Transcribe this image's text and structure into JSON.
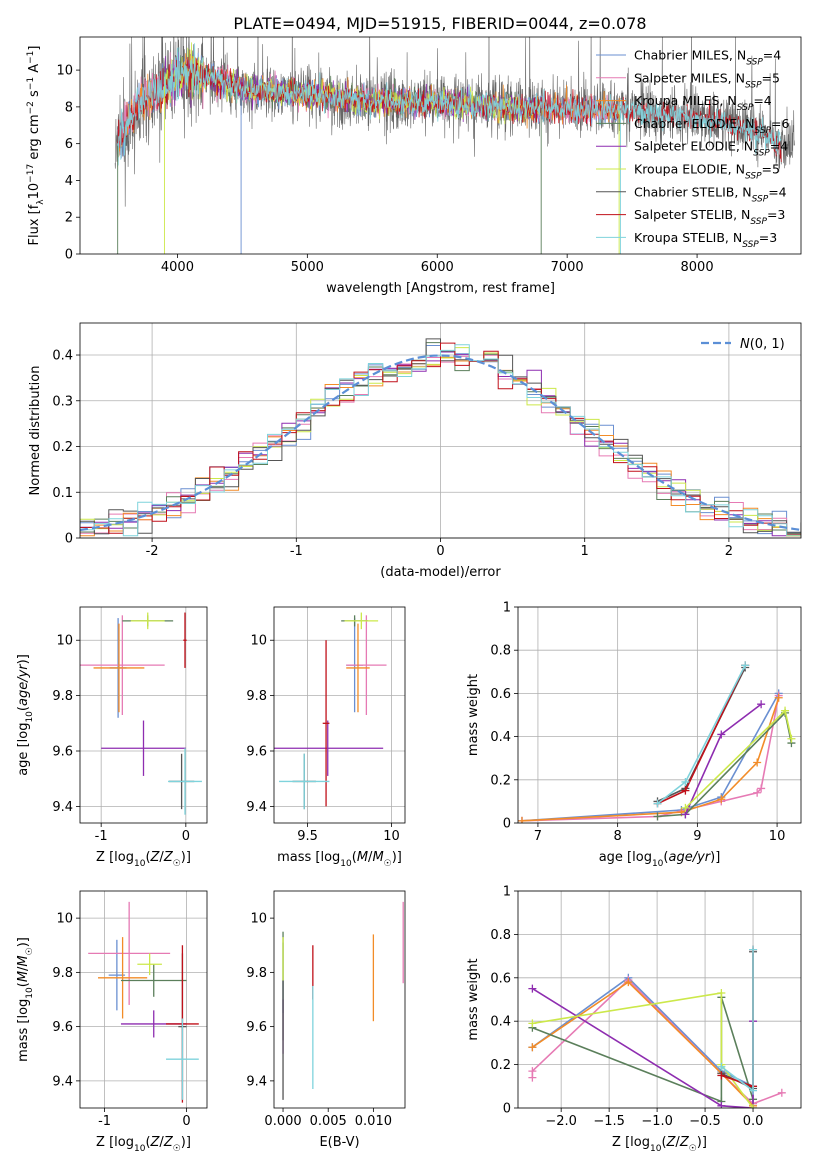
{
  "figure_title": "PLATE=0494, MJD=51915, FIBERID=0044, z=0.078",
  "colors": {
    "Chabrier MILES": "#6a8fd1",
    "Salpeter MILES": "#e67ab4",
    "Kroupa MILES": "#f28c28",
    "Chabrier ELODIE": "#5b7f5b",
    "Salpeter ELODIE": "#8e2db0",
    "Kroupa ELODIE": "#cce84a",
    "Chabrier STELIB": "#555555",
    "Salpeter STELIB": "#c0111a",
    "Kroupa STELIB": "#7fd3dc",
    "gaussian": "#5b8fd6",
    "grid": "#b0b0b0"
  },
  "chart_data": [
    {
      "id": "spectrum",
      "type": "line",
      "xlabel": "wavelength [Angstrom, rest frame]",
      "ylabel": "Flux [fλ10⁻¹⁷ erg cm⁻² s⁻¹ A⁻¹]",
      "xlim": [
        3250,
        8800
      ],
      "ylim": [
        0,
        11.8
      ],
      "xticks": [
        4000,
        5000,
        6000,
        7000,
        8000
      ],
      "yticks": [
        0,
        2,
        4,
        6,
        8,
        10
      ],
      "grid": false,
      "legend_position": "top-right",
      "data_range": [
        3520,
        7430
      ],
      "continuum": [
        [
          3520,
          5.6
        ],
        [
          3700,
          8.2
        ],
        [
          4000,
          9.6
        ],
        [
          4100,
          9.9
        ],
        [
          4500,
          9.0
        ],
        [
          5000,
          8.7
        ],
        [
          5500,
          8.3
        ],
        [
          6000,
          8.2
        ],
        [
          6500,
          8.0
        ],
        [
          7000,
          7.9
        ],
        [
          7400,
          7.8
        ],
        [
          7600,
          7.7
        ],
        [
          7900,
          7.5
        ],
        [
          8200,
          7.2
        ],
        [
          8500,
          6.6
        ],
        [
          8600,
          6.0
        ]
      ],
      "series": [
        {
          "name": "Chabrier MILES, N_SSP=4",
          "label_main": "Chabrier MILES, N",
          "label_sub": "SSP",
          "label_end": "=4",
          "range": [
            3540,
            7410
          ]
        },
        {
          "name": "Salpeter MILES, N_SSP=5",
          "label_main": "Salpeter MILES, N",
          "label_sub": "SSP",
          "label_end": "=5",
          "range": [
            3540,
            7410
          ]
        },
        {
          "name": "Kroupa MILES, N_SSP=4",
          "label_main": "Kroupa MILES, N",
          "label_sub": "SSP",
          "label_end": "=4",
          "range": [
            3540,
            7410
          ]
        },
        {
          "name": "Chabrier ELODIE, N_SSP=6",
          "label_main": "Chabrier ELODIE, N",
          "label_sub": "SSP",
          "label_end": "=6",
          "range": [
            3900,
            6800
          ]
        },
        {
          "name": "Salpeter ELODIE, N_SSP=4",
          "label_main": "Salpeter ELODIE, N",
          "label_sub": "SSP",
          "label_end": "=4",
          "range": [
            3900,
            6800
          ]
        },
        {
          "name": "Kroupa ELODIE, N_SSP=5",
          "label_main": "Kroupa ELODIE, N",
          "label_sub": "SSP",
          "label_end": "=5",
          "range": [
            3900,
            6800
          ]
        },
        {
          "name": "Chabrier STELIB, N_SSP=4",
          "label_main": "Chabrier STELIB, N",
          "label_sub": "SSP",
          "label_end": "=4",
          "range": [
            3520,
            8750
          ]
        },
        {
          "name": "Salpeter STELIB, N_SSP=3",
          "label_main": "Salpeter STELIB, N",
          "label_sub": "SSP",
          "label_end": "=3",
          "range": [
            3540,
            8650
          ]
        },
        {
          "name": "Kroupa STELIB, N_SSP=3",
          "label_main": "Kroupa STELIB, N",
          "label_sub": "SSP",
          "label_end": "=3",
          "range": [
            3540,
            8650
          ]
        }
      ]
    },
    {
      "id": "residuals",
      "type": "histogram",
      "xlabel": "(data-model)/error",
      "ylabel": "Normed distribution",
      "xlim": [
        -2.5,
        2.5
      ],
      "ylim": [
        0,
        0.47
      ],
      "xticks": [
        -2,
        -1,
        0,
        1,
        2
      ],
      "yticks": [
        0.0,
        0.1,
        0.2,
        0.3,
        0.4
      ],
      "grid": true,
      "legend_position": "top-right",
      "legend_label": "N(0,1)",
      "bin_width": 0.1,
      "note": "Nine step histograms, one per model, each approximately standard normal"
    },
    {
      "id": "age_vs_Z",
      "type": "errorbar",
      "xlabel": "Z [log10(Z/Z☉)]",
      "ylabel": "age [log10(age/yr)]",
      "xlim": [
        -1.25,
        0.25
      ],
      "ylim": [
        9.34,
        10.12
      ],
      "xticks": [
        -1,
        0
      ],
      "yticks": [
        9.4,
        9.6,
        9.8,
        10.0
      ],
      "grid": true,
      "points": [
        {
          "model": "Chabrier MILES",
          "x": -0.8,
          "xerr": 0.1,
          "y": 9.9,
          "yerr": 0.18
        },
        {
          "model": "Salpeter MILES",
          "x": -0.75,
          "xerr": 0.5,
          "y": 9.91,
          "yerr": 0.18
        },
        {
          "model": "Kroupa MILES",
          "x": -0.79,
          "xerr": 0.3,
          "y": 9.9,
          "yerr": 0.16
        },
        {
          "model": "Chabrier ELODIE",
          "x": -0.45,
          "xerr": 0.3,
          "y": 10.07,
          "yerr": 0.02
        },
        {
          "model": "Salpeter ELODIE",
          "x": -0.5,
          "xerr": 0.5,
          "y": 9.61,
          "yerr": 0.1
        },
        {
          "model": "Kroupa ELODIE",
          "x": -0.45,
          "xerr": 0.2,
          "y": 10.07,
          "yerr": 0.03
        },
        {
          "model": "Chabrier STELIB",
          "x": -0.05,
          "xerr": 0.15,
          "y": 9.49,
          "yerr": 0.1
        },
        {
          "model": "Salpeter STELIB",
          "x": -0.01,
          "xerr": 0.02,
          "y": 10.0,
          "yerr": 0.1
        },
        {
          "model": "Kroupa STELIB",
          "x": -0.01,
          "xerr": 0.2,
          "y": 9.49,
          "yerr": 0.12
        }
      ]
    },
    {
      "id": "age_vs_mass",
      "type": "errorbar",
      "xlabel": "mass [log10(M/M☉)]",
      "ylabel": "",
      "xlim": [
        9.3,
        10.08
      ],
      "ylim": [
        9.34,
        10.12
      ],
      "xticks": [
        9.5,
        10.0
      ],
      "yticks": [
        9.4,
        9.6,
        9.8,
        10.0
      ],
      "grid": true,
      "points": [
        {
          "model": "Chabrier MILES",
          "x": 9.78,
          "xerr": 0.05,
          "y": 9.91,
          "yerr": 0.17
        },
        {
          "model": "Salpeter MILES",
          "x": 9.85,
          "xerr": 0.12,
          "y": 9.91,
          "yerr": 0.18
        },
        {
          "model": "Kroupa MILES",
          "x": 9.8,
          "xerr": 0.07,
          "y": 9.9,
          "yerr": 0.16
        },
        {
          "model": "Chabrier ELODIE",
          "x": 9.78,
          "xerr": 0.08,
          "y": 10.07,
          "yerr": 0.02
        },
        {
          "model": "Salpeter ELODIE",
          "x": 9.62,
          "xerr": 0.33,
          "y": 9.61,
          "yerr": 0.1
        },
        {
          "model": "Kroupa ELODIE",
          "x": 9.82,
          "xerr": 0.1,
          "y": 10.07,
          "yerr": 0.03
        },
        {
          "model": "Chabrier STELIB",
          "x": 9.48,
          "xerr": 0.07,
          "y": 9.49,
          "yerr": 0.1
        },
        {
          "model": "Salpeter STELIB",
          "x": 9.61,
          "xerr": 0.02,
          "y": 9.7,
          "yerr": 0.3
        },
        {
          "model": "Kroupa STELIB",
          "x": 9.48,
          "xerr": 0.15,
          "y": 9.49,
          "yerr": 0.1
        }
      ]
    },
    {
      "id": "mass_weight_vs_age",
      "type": "line",
      "xlabel": "age [log10(age/yr)]",
      "ylabel": "mass weight",
      "xlim": [
        6.75,
        10.3
      ],
      "ylim": [
        0,
        1.0
      ],
      "xticks": [
        7,
        8,
        9,
        10
      ],
      "yticks": [
        0.0,
        0.2,
        0.4,
        0.6,
        0.8,
        1.0
      ],
      "grid": true,
      "series": [
        {
          "model": "Chabrier MILES",
          "x": [
            6.8,
            8.8,
            9.3,
            10.02
          ],
          "y": [
            0.01,
            0.06,
            0.12,
            0.6
          ]
        },
        {
          "model": "Salpeter MILES",
          "x": [
            6.8,
            8.5,
            9.3,
            9.75,
            9.8,
            10.02
          ],
          "y": [
            0.01,
            0.03,
            0.1,
            0.14,
            0.16,
            0.59
          ]
        },
        {
          "model": "Kroupa MILES",
          "x": [
            6.8,
            8.8,
            9.3,
            9.75,
            10.02
          ],
          "y": [
            0.01,
            0.05,
            0.11,
            0.28,
            0.58
          ]
        },
        {
          "model": "Chabrier ELODIE",
          "x": [
            8.5,
            8.85,
            10.1,
            10.18
          ],
          "y": [
            0.03,
            0.04,
            0.51,
            0.37
          ]
        },
        {
          "model": "Salpeter ELODIE",
          "x": [
            8.85,
            9.3,
            9.8
          ],
          "y": [
            0.04,
            0.41,
            0.55
          ]
        },
        {
          "model": "Kroupa ELODIE",
          "x": [
            8.85,
            10.1,
            10.18
          ],
          "y": [
            0.07,
            0.52,
            0.39
          ]
        },
        {
          "model": "Chabrier STELIB",
          "x": [
            8.5,
            8.85,
            9.6
          ],
          "y": [
            0.1,
            0.16,
            0.72
          ]
        },
        {
          "model": "Salpeter STELIB",
          "x": [
            8.5,
            8.85,
            9.6
          ],
          "y": [
            0.09,
            0.15,
            0.73
          ]
        },
        {
          "model": "Kroupa STELIB",
          "x": [
            8.5,
            8.85,
            9.6
          ],
          "y": [
            0.09,
            0.19,
            0.73
          ]
        }
      ]
    },
    {
      "id": "mass_vs_Z",
      "type": "errorbar",
      "xlabel": "Z [log10(Z/Z☉)]",
      "ylabel": "mass [log10(M/M☉)]",
      "xlim": [
        -1.3,
        0.25
      ],
      "ylim": [
        9.3,
        10.1
      ],
      "xticks": [
        -1,
        0
      ],
      "yticks": [
        9.4,
        9.6,
        9.8,
        10.0
      ],
      "grid": true,
      "points": [
        {
          "model": "Chabrier MILES",
          "x": -0.85,
          "xerr": 0.1,
          "y": 9.79,
          "yerr": 0.13
        },
        {
          "model": "Salpeter MILES",
          "x": -0.7,
          "xerr": 0.5,
          "y": 9.87,
          "yerr": 0.19
        },
        {
          "model": "Kroupa MILES",
          "x": -0.78,
          "xerr": 0.3,
          "y": 9.78,
          "yerr": 0.15
        },
        {
          "model": "Chabrier ELODIE",
          "x": -0.4,
          "xerr": 0.4,
          "y": 9.77,
          "yerr": 0.06
        },
        {
          "model": "Salpeter ELODIE",
          "x": -0.4,
          "xerr": 0.4,
          "y": 9.61,
          "yerr": 0.05
        },
        {
          "model": "Kroupa ELODIE",
          "x": -0.45,
          "xerr": 0.15,
          "y": 9.83,
          "yerr": 0.04
        },
        {
          "model": "Chabrier STELIB",
          "x": -0.05,
          "xerr": 0.05,
          "y": 9.6,
          "yerr": 0.27
        },
        {
          "model": "Salpeter STELIB",
          "x": -0.05,
          "xerr": 0.2,
          "y": 9.61,
          "yerr": 0.29
        },
        {
          "model": "Kroupa STELIB",
          "x": -0.05,
          "xerr": 0.2,
          "y": 9.48,
          "yerr": 0.15
        }
      ]
    },
    {
      "id": "mass_vs_ebv",
      "type": "errorbar",
      "xlabel": "E(B-V)",
      "ylabel": "",
      "xlim": [
        -0.001,
        0.0135
      ],
      "ylim": [
        9.3,
        10.1
      ],
      "xticks": [
        0.0,
        0.005,
        0.01
      ],
      "xticklabels": [
        "0.000",
        "0.005",
        "0.010"
      ],
      "yticks": [
        9.4,
        9.6,
        9.8,
        10.0
      ],
      "grid": false,
      "points": [
        {
          "model": "Chabrier MILES",
          "x": 0.0,
          "y": 9.78,
          "yerr": 0.13
        },
        {
          "model": "Salpeter MILES",
          "x": 0.0133,
          "y": 9.91,
          "yerr": 0.15
        },
        {
          "model": "Kroupa MILES",
          "x": 0.01,
          "y": 9.78,
          "yerr": 0.16
        },
        {
          "model": "Chabrier ELODIE",
          "x": 0.0,
          "y": 9.75,
          "yerr": 0.2
        },
        {
          "model": "Salpeter ELODIE",
          "x": 0.0,
          "y": 9.6,
          "yerr": 0.1
        },
        {
          "model": "Kroupa ELODIE",
          "x": 0.0,
          "y": 9.85,
          "yerr": 0.08
        },
        {
          "model": "Chabrier STELIB",
          "x": 0.0,
          "y": 9.55,
          "yerr": 0.22
        },
        {
          "model": "Salpeter STELIB",
          "x": 0.0033,
          "y": 9.8,
          "yerr": 0.1
        },
        {
          "model": "Kroupa STELIB",
          "x": 0.0033,
          "y": 9.56,
          "yerr": 0.19
        }
      ]
    },
    {
      "id": "mass_weight_vs_Z",
      "type": "line",
      "xlabel": "Z [log10(Z/Z☉)]",
      "ylabel": "mass weight",
      "xlim": [
        -2.45,
        0.5
      ],
      "ylim": [
        0,
        1.0
      ],
      "xticks": [
        -2.0,
        -1.5,
        -1.0,
        -0.5,
        0.0
      ],
      "xticklabels": [
        "−2.0",
        "−1.5",
        "−1.0",
        "−0.5",
        "0.0"
      ],
      "yticks": [
        0.0,
        0.2,
        0.4,
        0.6,
        0.8,
        1.0
      ],
      "grid": true,
      "series": [
        {
          "model": "Chabrier MILES",
          "x": [
            -2.3,
            -1.3,
            -0.33,
            0.0,
            0.0
          ],
          "y": [
            0.28,
            0.6,
            0.17,
            0.1,
            0.02
          ]
        },
        {
          "model": "Salpeter MILES",
          "x": [
            -2.3,
            -2.3,
            -1.3,
            -0.33,
            0.0,
            0.3
          ],
          "y": [
            0.14,
            0.17,
            0.59,
            0.16,
            0.02,
            0.07
          ]
        },
        {
          "model": "Kroupa MILES",
          "x": [
            -2.3,
            -1.3,
            -0.33,
            0.0
          ],
          "y": [
            0.28,
            0.58,
            0.16,
            0.01
          ]
        },
        {
          "model": "Chabrier ELODIE",
          "x": [
            -2.3,
            -0.33,
            -0.33,
            0.0
          ],
          "y": [
            0.37,
            0.03,
            0.51,
            0.04
          ]
        },
        {
          "model": "Salpeter ELODIE",
          "x": [
            -2.3,
            -0.33,
            0.0,
            0.0
          ],
          "y": [
            0.55,
            0.01,
            0.0,
            0.4
          ]
        },
        {
          "model": "Kroupa ELODIE",
          "x": [
            -2.3,
            -0.33,
            -0.33,
            0.0
          ],
          "y": [
            0.39,
            0.53,
            0.2,
            0.0
          ]
        },
        {
          "model": "Chabrier STELIB",
          "x": [
            -0.33,
            0.0,
            0.0
          ],
          "y": [
            0.16,
            0.09,
            0.72
          ]
        },
        {
          "model": "Salpeter STELIB",
          "x": [
            -0.33,
            0.0,
            0.0
          ],
          "y": [
            0.15,
            0.1,
            0.73
          ]
        },
        {
          "model": "Kroupa STELIB",
          "x": [
            -0.33,
            0.0,
            0.0
          ],
          "y": [
            0.19,
            0.08,
            0.73
          ]
        }
      ]
    }
  ]
}
